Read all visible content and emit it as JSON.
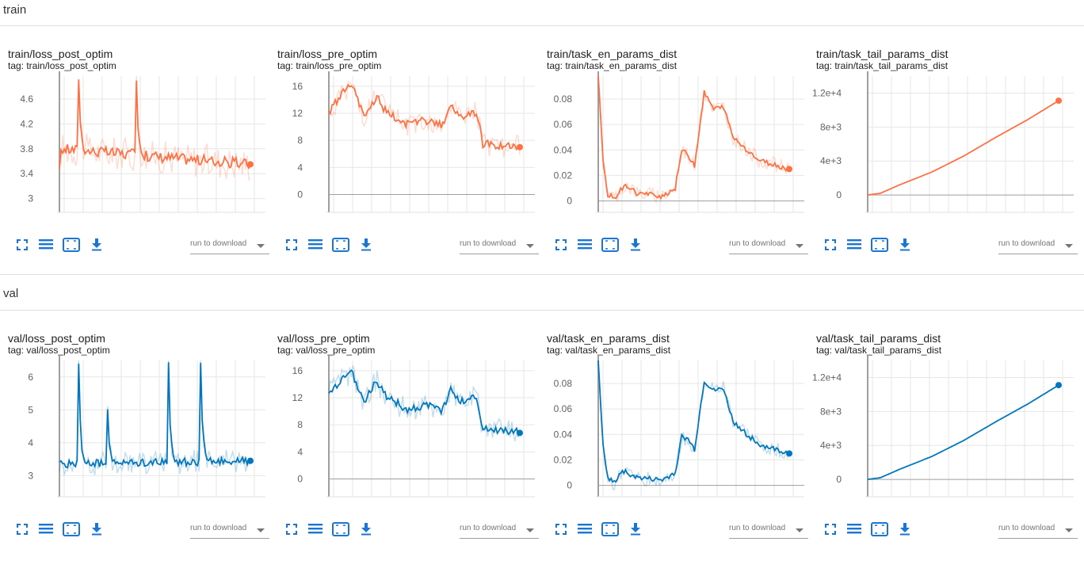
{
  "sections": [
    {
      "name": "train",
      "color": "#ff7043",
      "cards": [
        {
          "title": "train/loss_post_optim",
          "tag": "tag: train/loss_post_optim",
          "download_label": "run to download",
          "ymin": 2.88,
          "ymax": 4.97,
          "yticks": [
            3,
            3.4,
            3.8,
            4.2,
            4.6
          ],
          "ytick_labels": [
            "3",
            "3.4",
            "3.8",
            "4.2",
            "4.6"
          ],
          "n": 120,
          "base": [
            [
              0,
              3.4
            ],
            [
              1,
              3.8
            ],
            [
              119,
              3.55
            ]
          ],
          "noise": 0.09,
          "spikes": [
            [
              12,
              4.97
            ],
            [
              48,
              4.97
            ]
          ],
          "endval": 3.55
        },
        {
          "title": "train/loss_pre_optim",
          "tag": "tag: train/loss_pre_optim",
          "download_label": "run to download",
          "ymin": -1.7,
          "ymax": 17.5,
          "yticks": [
            0,
            4,
            8,
            12,
            16
          ],
          "ytick_labels": [
            "0",
            "4",
            "8",
            "12",
            "16"
          ],
          "n": 120,
          "base": [
            [
              0,
              12
            ],
            [
              10,
              15.5
            ],
            [
              14,
              16.3
            ],
            [
              22,
              11.5
            ],
            [
              30,
              14.5
            ],
            [
              36,
              12
            ],
            [
              50,
              10.2
            ],
            [
              60,
              11
            ],
            [
              70,
              10.2
            ],
            [
              76,
              13
            ],
            [
              82,
              11.5
            ],
            [
              92,
              12.2
            ],
            [
              96,
              7.5
            ],
            [
              119,
              7
            ]
          ],
          "noise": 0.6,
          "spikes": [],
          "endval": 7.0
        },
        {
          "title": "train/task_en_params_dist",
          "tag": "tag: train/task_en_params_dist",
          "download_label": "run to download",
          "ymin": -0.004,
          "ymax": 0.098,
          "yticks": [
            0,
            0.02,
            0.04,
            0.06,
            0.08
          ],
          "ytick_labels": [
            "0",
            "0.02",
            "0.04",
            "0.06",
            "0.08"
          ],
          "n": 120,
          "base": [
            [
              0,
              0.098
            ],
            [
              3,
              0.03
            ],
            [
              6,
              0.005
            ],
            [
              10,
              0.002
            ],
            [
              15,
              0.01
            ],
            [
              18,
              0.012
            ],
            [
              24,
              0.006
            ],
            [
              40,
              0.004
            ],
            [
              48,
              0.01
            ],
            [
              52,
              0.04
            ],
            [
              56,
              0.036
            ],
            [
              60,
              0.028
            ],
            [
              66,
              0.085
            ],
            [
              72,
              0.072
            ],
            [
              78,
              0.074
            ],
            [
              84,
              0.05
            ],
            [
              100,
              0.032
            ],
            [
              119,
              0.025
            ]
          ],
          "noise": 0.002,
          "spikes": [],
          "endval": 0.025
        },
        {
          "title": "train/task_tail_params_dist",
          "tag": "tag: train/task_tail_params_dist",
          "download_label": "run to download",
          "ymin": -1300,
          "ymax": 14000,
          "yticks": [
            0,
            4000,
            8000,
            12000
          ],
          "ytick_labels": [
            "0",
            "4e+3",
            "8e+3",
            "1.2e+4"
          ],
          "n": 120,
          "base": [
            [
              0,
              0
            ],
            [
              8,
              200
            ],
            [
              20,
              1200
            ],
            [
              40,
              2700
            ],
            [
              60,
              4600
            ],
            [
              80,
              6800
            ],
            [
              100,
              8900
            ],
            [
              119,
              11100
            ]
          ],
          "noise": 0,
          "spikes": [],
          "endval": 11100
        }
      ]
    },
    {
      "name": "val",
      "color": "#0277bd",
      "cards": [
        {
          "title": "val/loss_post_optim",
          "tag": "tag: val/loss_post_optim",
          "download_label": "run to download",
          "ymin": 2.55,
          "ymax": 6.5,
          "yticks": [
            3,
            4,
            5,
            6
          ],
          "ytick_labels": [
            "3",
            "4",
            "5",
            "6"
          ],
          "n": 120,
          "base": [
            [
              0,
              3.35
            ],
            [
              119,
              3.45
            ]
          ],
          "noise": 0.12,
          "spikes": [
            [
              12,
              6.5
            ],
            [
              30,
              4.9
            ],
            [
              68,
              6.5
            ],
            [
              88,
              6.5
            ]
          ],
          "endval": 3.45
        },
        {
          "title": "val/loss_pre_optim",
          "tag": "tag: val/loss_pre_optim",
          "download_label": "run to download",
          "ymin": -1.7,
          "ymax": 17.5,
          "yticks": [
            0,
            4,
            8,
            12,
            16
          ],
          "ytick_labels": [
            "0",
            "4",
            "8",
            "12",
            "16"
          ],
          "n": 120,
          "base": [
            [
              0,
              12.5
            ],
            [
              10,
              15
            ],
            [
              14,
              15.8
            ],
            [
              22,
              11.5
            ],
            [
              30,
              14.5
            ],
            [
              36,
              12
            ],
            [
              50,
              10.2
            ],
            [
              60,
              11
            ],
            [
              70,
              10.2
            ],
            [
              76,
              13
            ],
            [
              82,
              11.5
            ],
            [
              92,
              12.2
            ],
            [
              96,
              7.5
            ],
            [
              119,
              7
            ]
          ],
          "noise": 0.6,
          "spikes": [],
          "endval": 6.8
        },
        {
          "title": "val/task_en_params_dist",
          "tag": "tag: val/task_en_params_dist",
          "download_label": "run to download",
          "ymin": -0.004,
          "ymax": 0.098,
          "yticks": [
            0,
            0.02,
            0.04,
            0.06,
            0.08
          ],
          "ytick_labels": [
            "0",
            "0.02",
            "0.04",
            "0.06",
            "0.08"
          ],
          "n": 120,
          "base": [
            [
              0,
              0.098
            ],
            [
              3,
              0.03
            ],
            [
              6,
              0.005
            ],
            [
              10,
              0.002
            ],
            [
              15,
              0.012
            ],
            [
              18,
              0.01
            ],
            [
              24,
              0.006
            ],
            [
              40,
              0.004
            ],
            [
              48,
              0.01
            ],
            [
              52,
              0.038
            ],
            [
              56,
              0.036
            ],
            [
              60,
              0.028
            ],
            [
              66,
              0.082
            ],
            [
              72,
              0.074
            ],
            [
              78,
              0.076
            ],
            [
              84,
              0.05
            ],
            [
              100,
              0.032
            ],
            [
              119,
              0.025
            ]
          ],
          "noise": 0.002,
          "spikes": [],
          "endval": 0.025
        },
        {
          "title": "val/task_tail_params_dist",
          "tag": "tag: val/task_tail_params_dist",
          "download_label": "run to download",
          "ymin": -1300,
          "ymax": 14000,
          "yticks": [
            0,
            4000,
            8000,
            12000
          ],
          "ytick_labels": [
            "0",
            "4e+3",
            "8e+3",
            "1.2e+4"
          ],
          "n": 120,
          "base": [
            [
              0,
              0
            ],
            [
              8,
              200
            ],
            [
              20,
              1200
            ],
            [
              40,
              2700
            ],
            [
              60,
              4600
            ],
            [
              80,
              6800
            ],
            [
              100,
              8900
            ],
            [
              119,
              11100
            ]
          ],
          "noise": 0,
          "spikes": [],
          "endval": 11100
        }
      ]
    }
  ]
}
